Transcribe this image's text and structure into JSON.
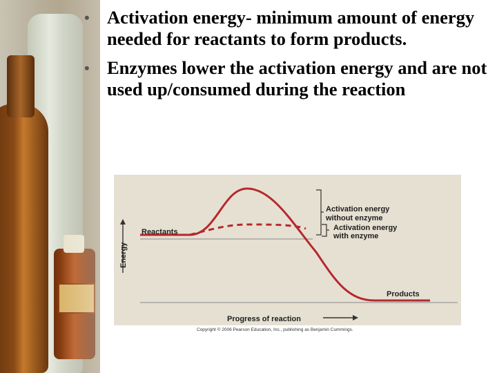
{
  "bullets": [
    {
      "text": "Activation energy- minimum amount of energy needed for reactants to form products."
    },
    {
      "text": "Enzymes lower the activation energy and are not used up/consumed during the reaction"
    }
  ],
  "figure": {
    "reactants_label": "Reactants",
    "products_label": "Products",
    "energy_axis_label": "Energy",
    "progress_axis_label": "Progress of reaction",
    "activation_without_enzyme": [
      "Activation energy",
      "without enzyme"
    ],
    "activation_with_enzyme": [
      "Activation energy",
      "with enzyme"
    ],
    "copyright": "Copyright © 2006 Pearson Education, Inc., publishing as Benjamin Cummings.",
    "colors": {
      "panel": "#e6e0d2",
      "curve": "#b5282d",
      "text": "#1e1e1e"
    }
  }
}
